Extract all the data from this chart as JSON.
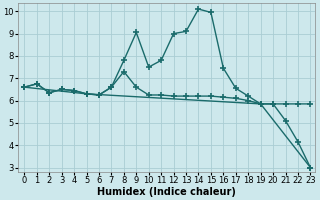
{
  "background_color": "#cde8ec",
  "grid_color": "#aacdd4",
  "line_color": "#1a6b6b",
  "line_width": 1.0,
  "marker": "+",
  "marker_size": 4,
  "marker_edge_width": 1.2,
  "xlabel": "Humidex (Indice chaleur)",
  "xlabel_fontsize": 7,
  "tick_fontsize": 6,
  "xlim": [
    -0.5,
    23.4
  ],
  "ylim": [
    2.8,
    10.35
  ],
  "yticks": [
    3,
    4,
    5,
    6,
    7,
    8,
    9,
    10
  ],
  "xticks": [
    0,
    1,
    2,
    3,
    4,
    5,
    6,
    7,
    8,
    9,
    10,
    11,
    12,
    13,
    14,
    15,
    16,
    17,
    18,
    19,
    20,
    21,
    22,
    23
  ],
  "line1_x": [
    0,
    1,
    2,
    3,
    4,
    5,
    6,
    7,
    8,
    9,
    10,
    11,
    12,
    13,
    14,
    15,
    16,
    17,
    18,
    19,
    20,
    21,
    22,
    23
  ],
  "line1_y": [
    6.6,
    6.75,
    6.35,
    6.5,
    6.45,
    6.3,
    6.25,
    6.6,
    7.8,
    9.05,
    7.5,
    7.8,
    9.0,
    9.1,
    10.1,
    9.95,
    7.45,
    6.55,
    6.2,
    5.85,
    5.85,
    5.1,
    4.15,
    3.0
  ],
  "line2_x": [
    0,
    1,
    2,
    3,
    4,
    5,
    6,
    7,
    8,
    9,
    10,
    11,
    12,
    13,
    14,
    15,
    16,
    17,
    18,
    19,
    20,
    21,
    22,
    23
  ],
  "line2_y": [
    6.6,
    6.75,
    6.35,
    6.5,
    6.45,
    6.3,
    6.25,
    6.6,
    7.3,
    6.6,
    6.25,
    6.25,
    6.2,
    6.2,
    6.2,
    6.2,
    6.15,
    6.1,
    6.0,
    5.85,
    5.85,
    5.85,
    5.85,
    5.85
  ],
  "line3_x": [
    0,
    5,
    19,
    23
  ],
  "line3_y": [
    6.6,
    6.3,
    5.85,
    3.0
  ]
}
